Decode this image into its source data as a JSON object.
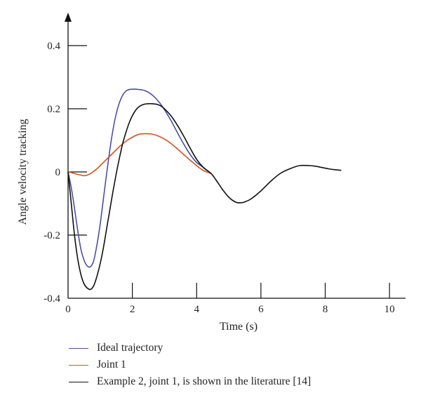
{
  "chart_data": {
    "type": "line",
    "title": "",
    "xlabel": "Time (s)",
    "ylabel": "Angle velocity tracking",
    "xlim": [
      0,
      10.5
    ],
    "ylim": [
      -0.4,
      0.4
    ],
    "x_ticks": [
      "0",
      "2",
      "4",
      "6",
      "8",
      "10"
    ],
    "y_ticks": [
      "0.4",
      "0.2",
      "0",
      "-0.2",
      "-0.4"
    ],
    "x_tick_values": [
      0,
      2,
      4,
      6,
      8,
      10
    ],
    "y_tick_values": [
      0.4,
      0.2,
      0,
      -0.2,
      -0.4
    ],
    "grid": false,
    "legend_position": "bottom",
    "series": [
      {
        "name": "Ideal trajectory",
        "color": "#4a4fa8",
        "x": [
          0,
          0.1,
          0.2,
          0.3,
          0.4,
          0.5,
          0.6,
          0.7,
          0.8,
          0.9,
          1.0,
          1.1,
          1.2,
          1.3,
          1.4,
          1.5,
          1.6,
          1.7,
          1.8,
          1.9,
          2.0,
          2.1,
          2.2,
          2.3,
          2.4,
          2.5,
          2.6,
          2.7,
          2.8,
          2.9,
          3.0,
          3.2,
          3.4,
          3.6,
          3.8,
          4.0,
          4.2,
          4.45
        ],
        "y": [
          0,
          -0.05,
          -0.115,
          -0.185,
          -0.245,
          -0.28,
          -0.298,
          -0.3,
          -0.28,
          -0.23,
          -0.165,
          -0.085,
          -0.005,
          0.07,
          0.135,
          0.185,
          0.22,
          0.243,
          0.256,
          0.261,
          0.262,
          0.262,
          0.261,
          0.26,
          0.257,
          0.252,
          0.245,
          0.236,
          0.225,
          0.212,
          0.197,
          0.163,
          0.125,
          0.088,
          0.055,
          0.03,
          0.015,
          -0.005
        ]
      },
      {
        "name": "Joint 1",
        "color": "#d2531d",
        "x": [
          0,
          0.1,
          0.2,
          0.3,
          0.4,
          0.5,
          0.6,
          0.7,
          0.8,
          0.9,
          1.0,
          1.2,
          1.4,
          1.6,
          1.8,
          2.0,
          2.2,
          2.4,
          2.6,
          2.8,
          3.0,
          3.2,
          3.4,
          3.6,
          3.8,
          4.0,
          4.2,
          4.45
        ],
        "y": [
          0,
          -0.002,
          -0.005,
          -0.008,
          -0.01,
          -0.012,
          -0.01,
          -0.005,
          0.002,
          0.01,
          0.02,
          0.04,
          0.06,
          0.08,
          0.097,
          0.11,
          0.119,
          0.121,
          0.12,
          0.114,
          0.104,
          0.09,
          0.073,
          0.055,
          0.037,
          0.02,
          0.005,
          -0.005
        ]
      },
      {
        "name": "Example 2, joint 1, is shown in the literature [14]",
        "color": "#111111",
        "x": [
          0,
          0.1,
          0.2,
          0.3,
          0.4,
          0.5,
          0.6,
          0.7,
          0.8,
          0.9,
          1.0,
          1.1,
          1.2,
          1.3,
          1.4,
          1.5,
          1.6,
          1.7,
          1.8,
          1.9,
          2.0,
          2.1,
          2.2,
          2.3,
          2.4,
          2.5,
          2.6,
          2.7,
          2.8,
          2.9,
          3.0,
          3.2,
          3.4,
          3.6,
          3.8,
          4.0,
          4.2,
          4.45,
          4.6,
          4.8,
          5.0,
          5.2,
          5.35,
          5.5,
          5.7,
          6.0,
          6.3,
          6.6,
          6.9,
          7.2,
          7.5,
          7.7,
          7.9,
          8.1,
          8.3,
          8.5
        ],
        "y": [
          0,
          -0.1,
          -0.2,
          -0.275,
          -0.325,
          -0.355,
          -0.368,
          -0.372,
          -0.36,
          -0.33,
          -0.29,
          -0.24,
          -0.18,
          -0.12,
          -0.06,
          -0.005,
          0.045,
          0.09,
          0.125,
          0.155,
          0.178,
          0.195,
          0.206,
          0.212,
          0.215,
          0.216,
          0.216,
          0.215,
          0.213,
          0.208,
          0.2,
          0.178,
          0.148,
          0.113,
          0.075,
          0.04,
          0.015,
          -0.005,
          -0.025,
          -0.055,
          -0.08,
          -0.095,
          -0.098,
          -0.095,
          -0.085,
          -0.06,
          -0.03,
          -0.005,
          0.01,
          0.02,
          0.02,
          0.018,
          0.014,
          0.01,
          0.007,
          0.005
        ]
      }
    ]
  }
}
